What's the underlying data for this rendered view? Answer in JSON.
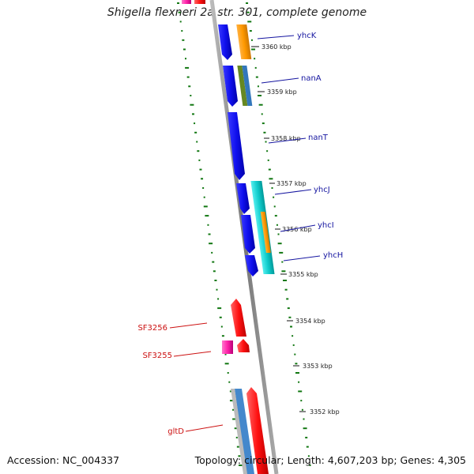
{
  "title": "Shigella flexneri 2a str. 301, complete genome",
  "footer": {
    "accession": "Accession: NC_004337",
    "summary": "Topology: circular; Length: 4,607,203 bp; Genes: 4,305"
  },
  "ticks": [
    "3360 kbp",
    "3359 kbp",
    "3358 kbp",
    "3357 kbp",
    "3356 kbp",
    "3355 kbp",
    "3354 kbp",
    "3353 kbp",
    "3352 kbp"
  ],
  "gene_labels_right": [
    "yhcK",
    "nanA",
    "nanT",
    "yhcJ",
    "yhcI",
    "yhcH"
  ],
  "gene_labels_left": [
    "SF3256",
    "SF3255",
    "gltD"
  ],
  "colors": {
    "blue_gene": "#1010ee",
    "orange_gene": "#ff9900",
    "cyan_gene": "#11cccc",
    "red_gene": "#ff1111",
    "magenta_gene": "#ff22aa",
    "olive_gene": "#668822",
    "steel_gene": "#3377bb",
    "backbone": "#888888",
    "gc_dots": "#117711"
  }
}
